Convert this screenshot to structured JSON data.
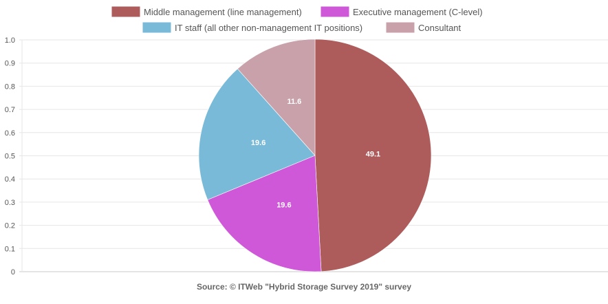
{
  "chart_data": {
    "type": "pie",
    "categories": [
      "Middle management (line management)",
      "Executive management (C-level)",
      "IT staff (all other non-management IT positions)",
      "Consultant"
    ],
    "values": [
      49.1,
      19.6,
      19.6,
      11.6
    ],
    "data_labels": [
      "49.1",
      "19.6",
      "19.6",
      "11.6"
    ],
    "colors": [
      "#ad5b5b",
      "#cf58d9",
      "#78bad7",
      "#c8a1ab"
    ],
    "yticks": [
      "0",
      "0.1",
      "0.2",
      "0.3",
      "0.4",
      "0.5",
      "0.6",
      "0.7",
      "0.8",
      "0.9",
      "1.0"
    ],
    "ylim": [
      0,
      1.0
    ],
    "grid": true,
    "legend_position": "top",
    "source": "Source: © ITWeb \"Hybrid Storage Survey 2019\" survey"
  }
}
